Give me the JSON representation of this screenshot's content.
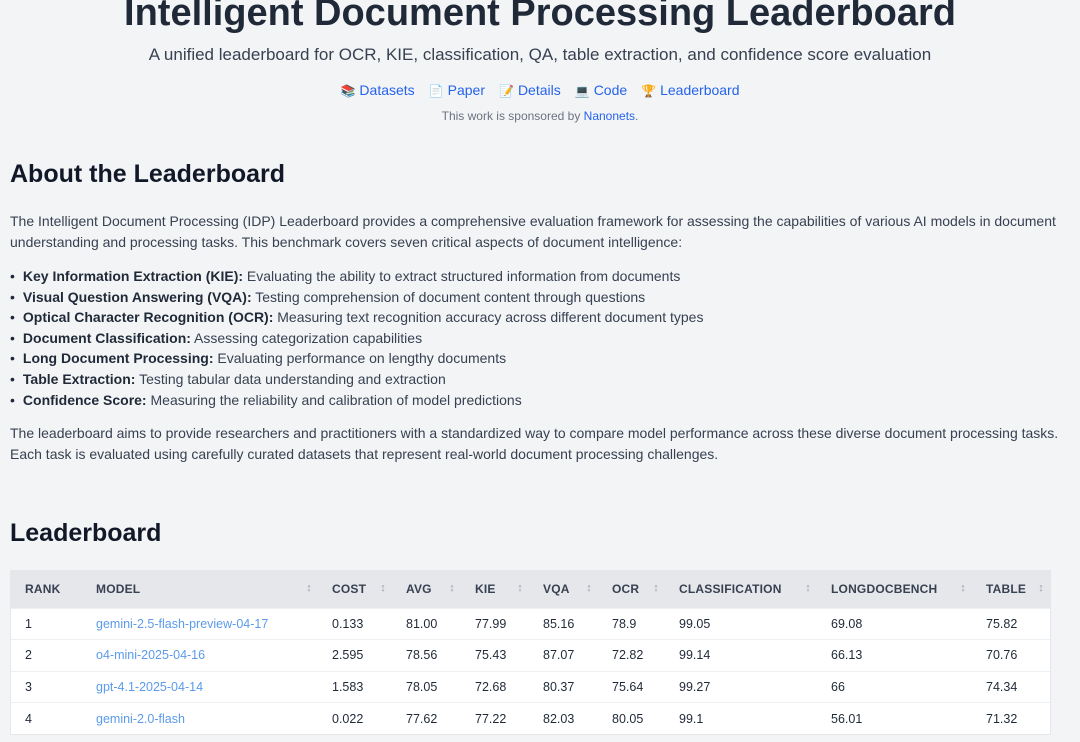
{
  "header": {
    "title": "Intelligent Document Processing Leaderboard",
    "subtitle": "A unified leaderboard for OCR, KIE, classification, QA, table extraction, and confidence score evaluation",
    "links": [
      {
        "icon": "📚",
        "label": "Datasets"
      },
      {
        "icon": "📄",
        "label": "Paper"
      },
      {
        "icon": "📝",
        "label": "Details"
      },
      {
        "icon": "💻",
        "label": "Code"
      },
      {
        "icon": "🏆",
        "label": "Leaderboard"
      }
    ],
    "sponsor_prefix": "This work is sponsored by ",
    "sponsor_name": "Nanonets",
    "sponsor_suffix": "."
  },
  "about": {
    "heading": "About the Leaderboard",
    "intro": "The Intelligent Document Processing (IDP) Leaderboard provides a comprehensive evaluation framework for assessing the capabilities of various AI models in document understanding and processing tasks. This benchmark covers seven critical aspects of document intelligence:",
    "items": [
      {
        "term": "Key Information Extraction (KIE):",
        "desc": " Evaluating the ability to extract structured information from documents"
      },
      {
        "term": "Visual Question Answering (VQA):",
        "desc": " Testing comprehension of document content through questions"
      },
      {
        "term": "Optical Character Recognition (OCR):",
        "desc": " Measuring text recognition accuracy across different document types"
      },
      {
        "term": "Document Classification:",
        "desc": " Assessing categorization capabilities"
      },
      {
        "term": "Long Document Processing:",
        "desc": " Evaluating performance on lengthy documents"
      },
      {
        "term": "Table Extraction:",
        "desc": " Testing tabular data understanding and extraction"
      },
      {
        "term": "Confidence Score:",
        "desc": " Measuring the reliability and calibration of model predictions"
      }
    ],
    "outro": "The leaderboard aims to provide researchers and practitioners with a standardized way to compare model performance across these diverse document processing tasks. Each task is evaluated using carefully curated datasets that represent real-world document processing challenges."
  },
  "leaderboard": {
    "heading": "Leaderboard",
    "columns": [
      "RANK",
      "MODEL",
      "COST",
      "AVG",
      "KIE",
      "VQA",
      "OCR",
      "CLASSIFICATION",
      "LONGDOCBENCH",
      "TABLE"
    ],
    "rows": [
      [
        "1",
        "gemini-2.5-flash-preview-04-17",
        "0.133",
        "81.00",
        "77.99",
        "85.16",
        "78.9",
        "99.05",
        "69.08",
        "75.82"
      ],
      [
        "2",
        "o4-mini-2025-04-16",
        "2.595",
        "78.56",
        "75.43",
        "87.07",
        "72.82",
        "99.14",
        "66.13",
        "70.76"
      ],
      [
        "3",
        "gpt-4.1-2025-04-14",
        "1.583",
        "78.05",
        "72.68",
        "80.37",
        "75.64",
        "99.27",
        "66",
        "74.34"
      ],
      [
        "4",
        "gemini-2.0-flash",
        "0.022",
        "77.62",
        "77.22",
        "82.03",
        "80.05",
        "99.1",
        "56.01",
        "71.32"
      ]
    ]
  }
}
